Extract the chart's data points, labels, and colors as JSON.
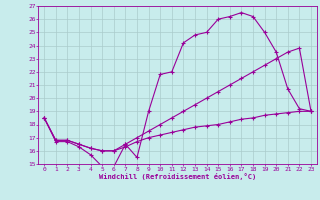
{
  "xlabel": "Windchill (Refroidissement éolien,°C)",
  "bg_color": "#c8ecec",
  "line_color": "#990099",
  "grid_color": "#aacccc",
  "xlim": [
    -0.5,
    23.5
  ],
  "ylim": [
    15,
    27
  ],
  "xticks": [
    0,
    1,
    2,
    3,
    4,
    5,
    6,
    7,
    8,
    9,
    10,
    11,
    12,
    13,
    14,
    15,
    16,
    17,
    18,
    19,
    20,
    21,
    22,
    23
  ],
  "yticks": [
    15,
    16,
    17,
    18,
    19,
    20,
    21,
    22,
    23,
    24,
    25,
    26,
    27
  ],
  "line1_x": [
    0,
    1,
    2,
    3,
    4,
    5,
    6,
    7,
    8,
    9,
    10,
    11,
    12,
    13,
    14,
    15,
    16,
    17,
    18,
    19,
    20,
    21,
    22,
    23
  ],
  "line1_y": [
    18.5,
    16.7,
    16.7,
    16.3,
    15.7,
    14.8,
    14.8,
    16.5,
    15.5,
    19.0,
    21.8,
    22.0,
    24.2,
    24.8,
    25.0,
    26.0,
    26.2,
    26.5,
    26.2,
    25.0,
    23.5,
    20.7,
    19.2,
    19.0
  ],
  "line2_x": [
    0,
    1,
    2,
    3,
    4,
    5,
    6,
    7,
    8,
    9,
    10,
    11,
    12,
    13,
    14,
    15,
    16,
    17,
    18,
    19,
    20,
    21,
    22,
    23
  ],
  "line2_y": [
    18.5,
    16.8,
    16.8,
    16.5,
    16.2,
    16.0,
    16.0,
    16.5,
    17.0,
    17.5,
    18.0,
    18.5,
    19.0,
    19.5,
    20.0,
    20.5,
    21.0,
    21.5,
    22.0,
    22.5,
    23.0,
    23.5,
    23.8,
    19.0
  ],
  "line3_x": [
    0,
    1,
    2,
    3,
    4,
    5,
    6,
    7,
    8,
    9,
    10,
    11,
    12,
    13,
    14,
    15,
    16,
    17,
    18,
    19,
    20,
    21,
    22,
    23
  ],
  "line3_y": [
    18.5,
    16.8,
    16.8,
    16.5,
    16.2,
    16.0,
    16.0,
    16.3,
    16.7,
    17.0,
    17.2,
    17.4,
    17.6,
    17.8,
    17.9,
    18.0,
    18.2,
    18.4,
    18.5,
    18.7,
    18.8,
    18.9,
    19.0,
    19.0
  ]
}
